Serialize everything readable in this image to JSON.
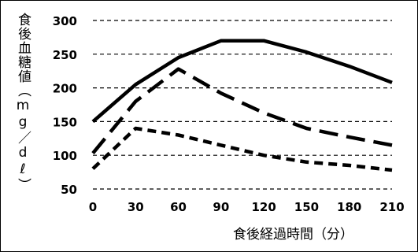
{
  "chart_data": {
    "type": "line",
    "ylabel": "食後血糖値（mg／dℓ）",
    "xlabel": "食後経過時間（分）",
    "x": [
      0,
      30,
      60,
      90,
      120,
      150,
      180,
      210
    ],
    "xticks": [
      "0",
      "30",
      "60",
      "90",
      "120",
      "150",
      "180",
      "210"
    ],
    "yticks": [
      "50",
      "100",
      "150",
      "200",
      "250",
      "300"
    ],
    "xlim": [
      0,
      210
    ],
    "ylim": [
      50,
      300
    ],
    "grid": true,
    "series": [
      {
        "style": "solid",
        "points": [
          [
            0,
            150
          ],
          [
            30,
            205
          ],
          [
            60,
            245
          ],
          [
            90,
            270
          ],
          [
            120,
            270
          ],
          [
            150,
            253
          ],
          [
            180,
            232
          ],
          [
            210,
            208
          ]
        ]
      },
      {
        "style": "long-dash",
        "points": [
          [
            0,
            103
          ],
          [
            30,
            180
          ],
          [
            60,
            228
          ],
          [
            90,
            192
          ],
          [
            120,
            163
          ],
          [
            150,
            140
          ],
          [
            180,
            127
          ],
          [
            210,
            115
          ]
        ]
      },
      {
        "style": "short-dash",
        "points": [
          [
            0,
            80
          ],
          [
            30,
            140
          ],
          [
            60,
            130
          ],
          [
            90,
            115
          ],
          [
            120,
            100
          ],
          [
            150,
            90
          ],
          [
            180,
            85
          ],
          [
            210,
            78
          ]
        ]
      }
    ]
  }
}
